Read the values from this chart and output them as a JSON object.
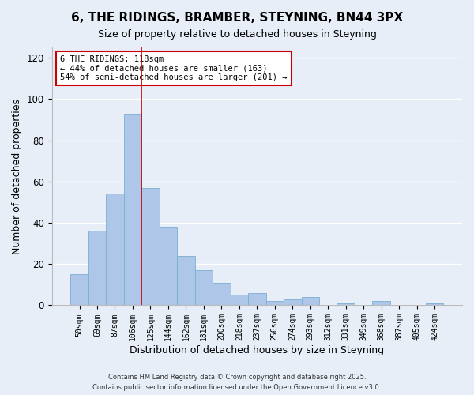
{
  "title": "6, THE RIDINGS, BRAMBER, STEYNING, BN44 3PX",
  "subtitle": "Size of property relative to detached houses in Steyning",
  "bar_labels": [
    "50sqm",
    "69sqm",
    "87sqm",
    "106sqm",
    "125sqm",
    "144sqm",
    "162sqm",
    "181sqm",
    "200sqm",
    "218sqm",
    "237sqm",
    "256sqm",
    "274sqm",
    "293sqm",
    "312sqm",
    "331sqm",
    "349sqm",
    "368sqm",
    "387sqm",
    "405sqm",
    "424sqm"
  ],
  "bar_values": [
    15,
    36,
    54,
    93,
    57,
    38,
    24,
    17,
    11,
    5,
    6,
    2,
    3,
    4,
    0,
    1,
    0,
    2,
    0,
    0,
    1
  ],
  "bar_color": "#aec6e8",
  "bar_edge_color": "#7aafd4",
  "property_line_bin": 3,
  "property_line_color": "#cc0000",
  "annotation_text": "6 THE RIDINGS: 118sqm\n← 44% of detached houses are smaller (163)\n54% of semi-detached houses are larger (201) →",
  "annotation_box_color": "#ffffff",
  "annotation_box_edge": "#cc0000",
  "xlabel": "Distribution of detached houses by size in Steyning",
  "ylabel": "Number of detached properties",
  "ylim": [
    0,
    125
  ],
  "yticks": [
    0,
    20,
    40,
    60,
    80,
    100,
    120
  ],
  "background_color": "#e8eef8",
  "grid_color": "#ffffff",
  "footer1": "Contains HM Land Registry data © Crown copyright and database right 2025.",
  "footer2": "Contains public sector information licensed under the Open Government Licence v3.0."
}
